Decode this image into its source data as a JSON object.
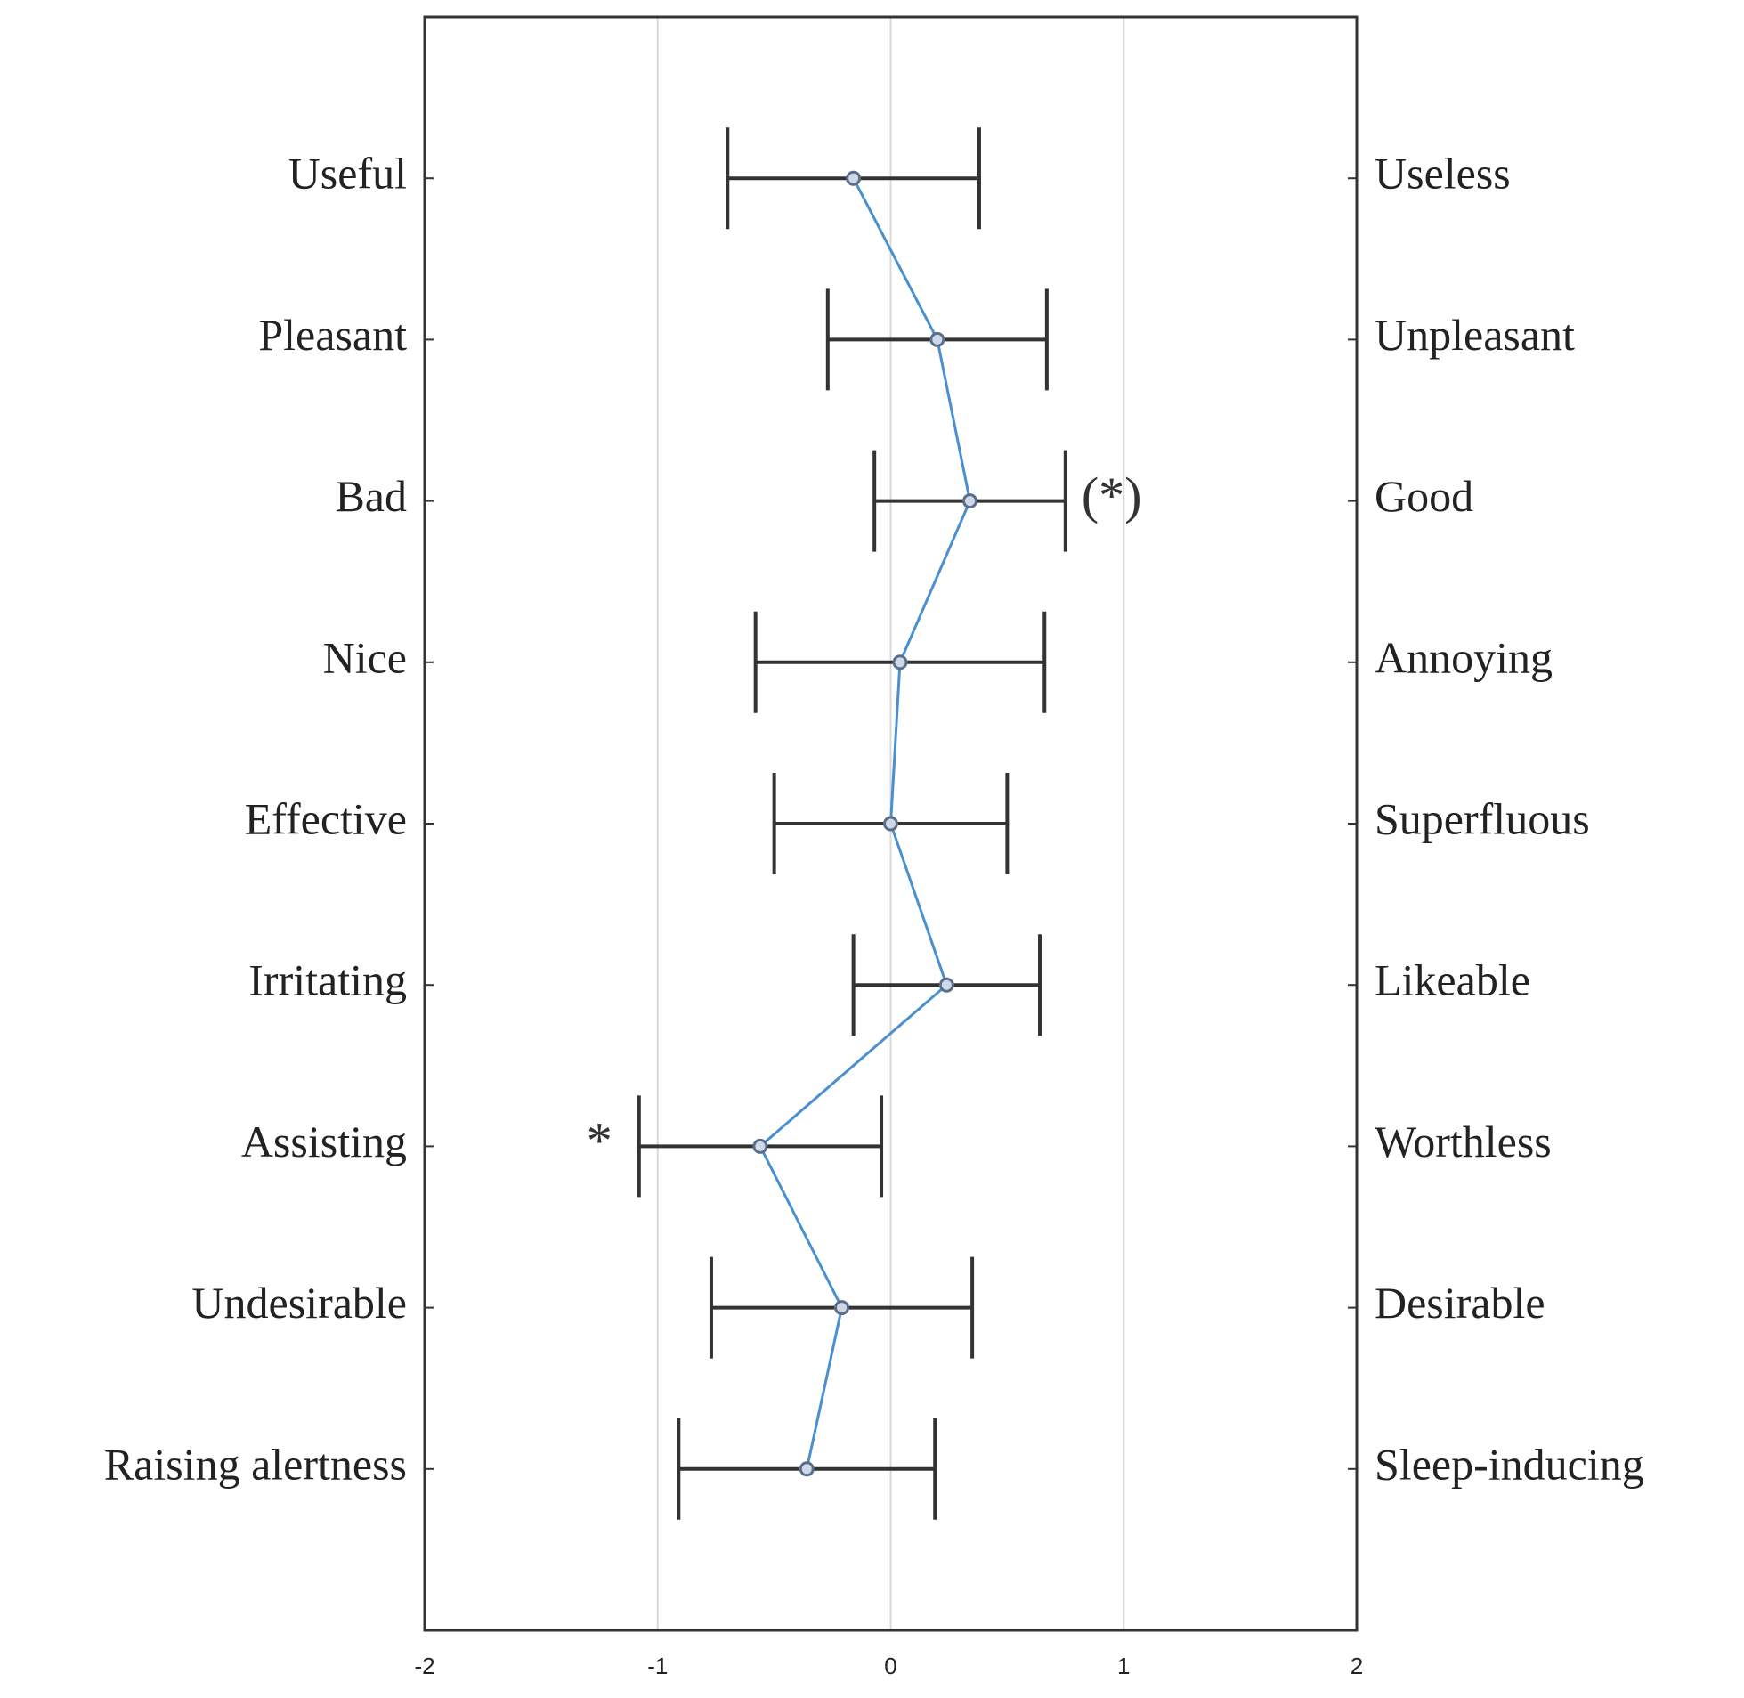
{
  "chart_data": {
    "type": "errorbar",
    "categories": [
      "Useful",
      "Pleasant",
      "Bad",
      "Nice",
      "Effective",
      "Irritating",
      "Assisting",
      "Undesirable",
      "Raising alertness"
    ],
    "right_labels": [
      "Useless",
      "Unpleasant",
      "Good",
      "Annoying",
      "Superfluous",
      "Likeable",
      "Worthless",
      "Desirable",
      "Sleep-inducing"
    ],
    "series": [
      {
        "color": "#4a90d0",
        "values": [
          -0.16,
          0.2,
          0.34,
          0.04,
          0.0,
          0.24,
          -0.56,
          -0.21,
          -0.36
        ],
        "errors": [
          0.54,
          0.47,
          0.41,
          0.62,
          0.5,
          0.4,
          0.52,
          0.56,
          0.55
        ]
      }
    ],
    "annotations": [
      {
        "text": "(*)",
        "category": "Bad",
        "side": "right"
      },
      {
        "text": "*",
        "category": "Assisting",
        "side": "left"
      }
    ],
    "xlim": [
      -2,
      2
    ],
    "xticks": [
      -2,
      -1,
      0,
      1,
      2
    ],
    "grid": true
  }
}
